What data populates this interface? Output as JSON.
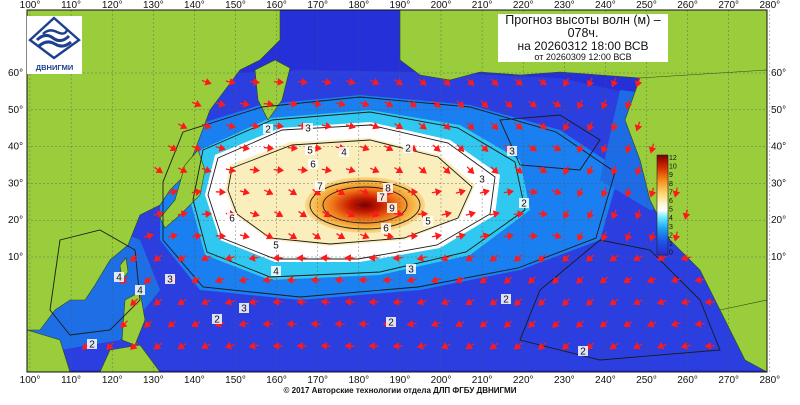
{
  "title": {
    "line1": "Прогноз высоты волн (м) –",
    "line2": "078ч.",
    "line3": "на 20260312 18:00 ВСВ",
    "line4": "от 20260309 12:00 ВСВ"
  },
  "logo": {
    "text": "ДВНИГМИ",
    "icon": "wave-logo-icon"
  },
  "footer": "© 2017 Авторские технологии отдела ДЛП ФГБУ ДВНИГМИ",
  "axes": {
    "lon_labels": [
      "100°",
      "110°",
      "120°",
      "130°",
      "140°",
      "150°",
      "160°",
      "170°",
      "180°",
      "190°",
      "200°",
      "210°",
      "220°",
      "230°",
      "240°",
      "250°",
      "260°",
      "270°",
      "280°"
    ],
    "lat_labels_left": [
      "60°",
      "50°",
      "40°",
      "30°",
      "20°",
      "10°"
    ],
    "lat_labels_right": [
      "60°",
      "50°",
      "40°",
      "30°",
      "20°",
      "10°"
    ]
  },
  "colorbar": {
    "labels": [
      "12",
      "10",
      "9",
      "8",
      "7",
      "6",
      "5",
      "4",
      "3",
      "2",
      "1",
      "0"
    ],
    "colors": [
      "#7a0000",
      "#b51200",
      "#e14a00",
      "#f58a1a",
      "#fbc35a",
      "#fbe9a6",
      "#ffffff",
      "#9ef0ff",
      "#36d6f2",
      "#1a8ef0",
      "#1e4be8",
      "#2a2ad8"
    ]
  },
  "contour_labels": [
    "3",
    "2",
    "3",
    "5",
    "6",
    "4",
    "7",
    "8",
    "9",
    "7",
    "6",
    "5",
    "6",
    "5",
    "4",
    "3",
    "2",
    "3",
    "4",
    "4",
    "2",
    "3",
    "2",
    "2",
    "2",
    "2",
    "2",
    "3"
  ],
  "colors": {
    "land": "#9acd3c",
    "ocean_deep": "#2530d9",
    "arrow": "#ff1a1a"
  }
}
